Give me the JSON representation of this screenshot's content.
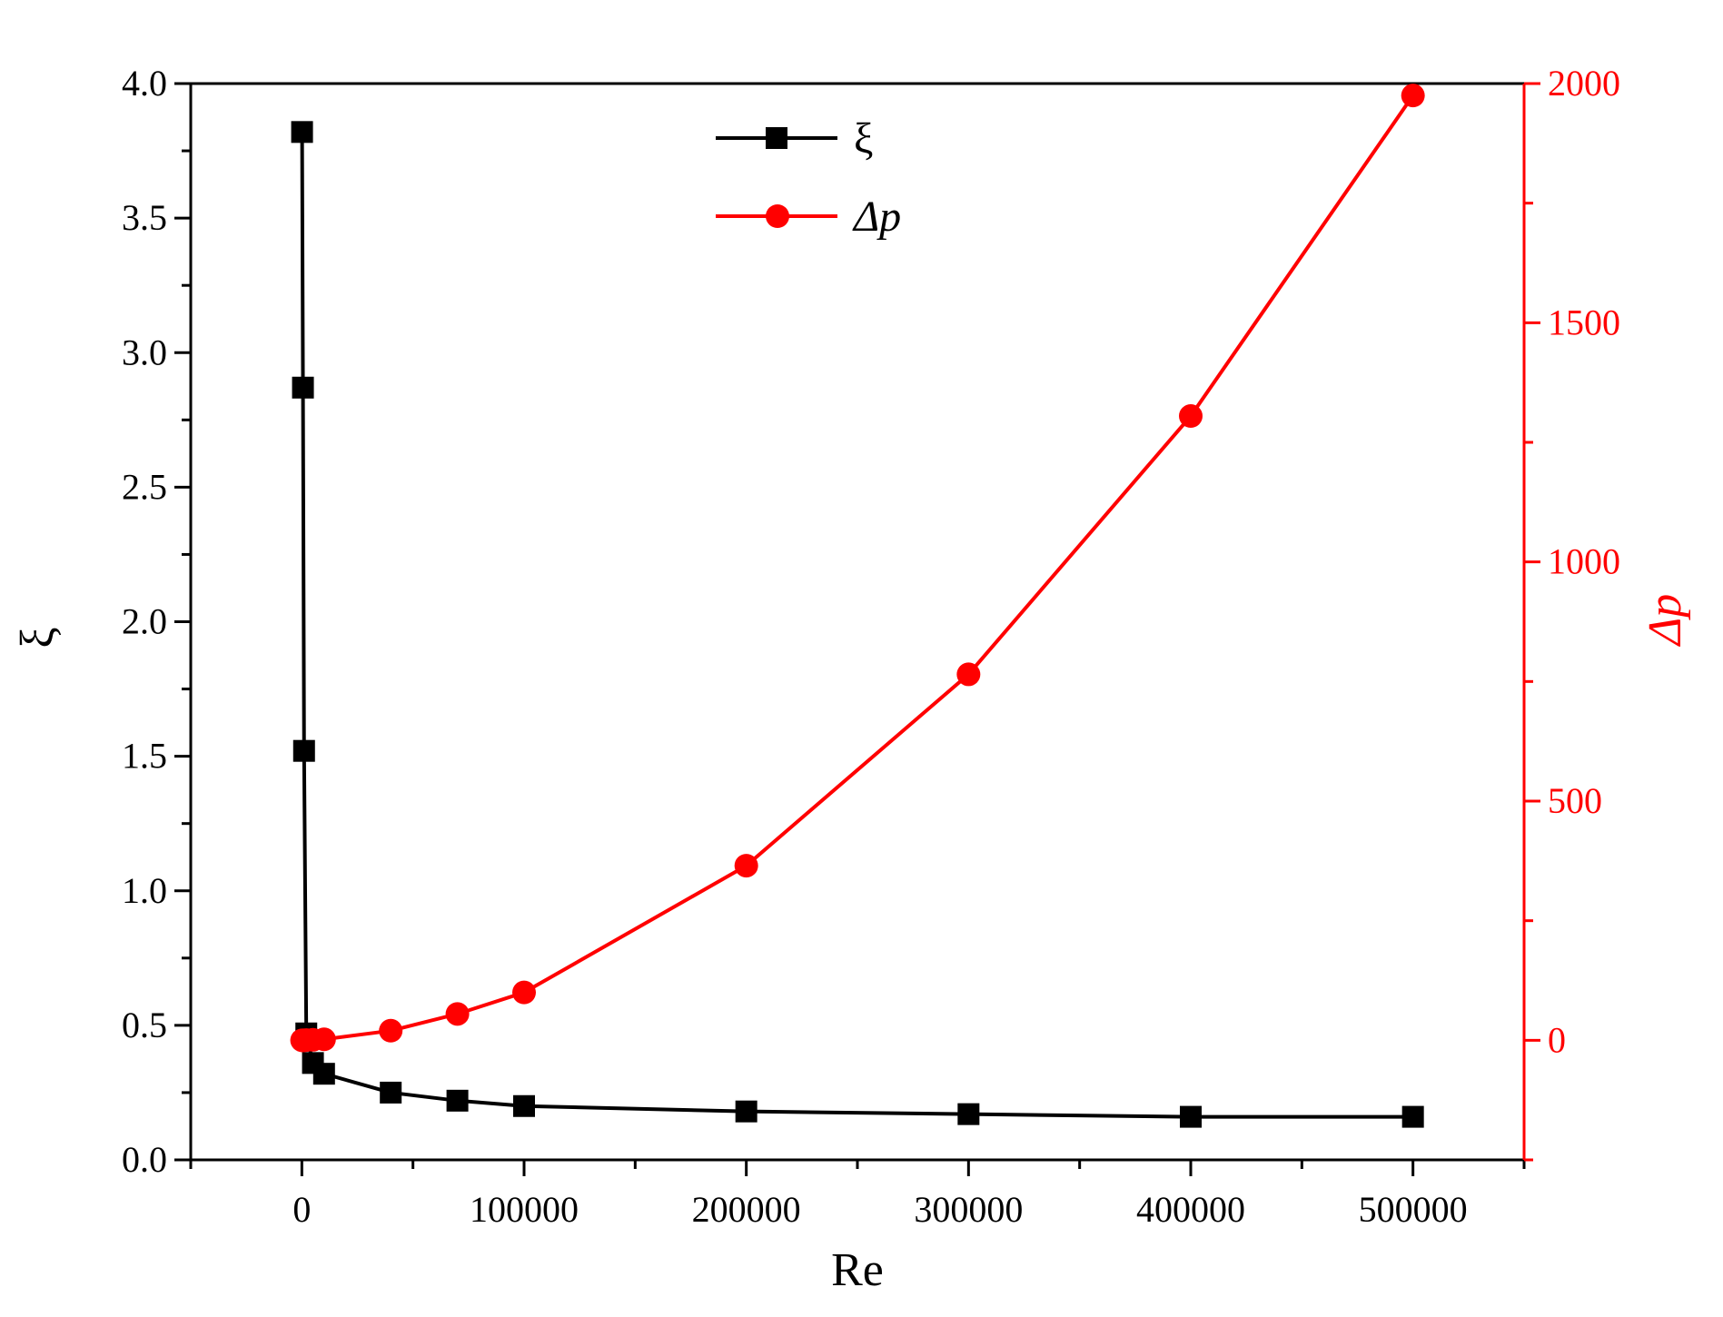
{
  "chart_data": {
    "type": "line",
    "xlabel": "Re",
    "ylabel_left": "ξ",
    "ylabel_right": "Δp",
    "xlim": [
      -50000,
      550000
    ],
    "ylim_left": [
      0,
      4.0
    ],
    "ylim_right": [
      -250,
      2000
    ],
    "x_ticks": [
      0,
      100000,
      200000,
      300000,
      400000,
      500000
    ],
    "x_tick_labels": [
      "0",
      "100000",
      "200000",
      "300000",
      "400000",
      "500000"
    ],
    "y_left_ticks": [
      0.0,
      0.5,
      1.0,
      1.5,
      2.0,
      2.5,
      3.0,
      3.5,
      4.0
    ],
    "y_left_tick_labels": [
      "0.0",
      "0.5",
      "1.0",
      "1.5",
      "2.0",
      "2.5",
      "3.0",
      "3.5",
      "4.0"
    ],
    "y_right_ticks": [
      0,
      500,
      1000,
      1500,
      2000
    ],
    "y_right_tick_labels": [
      "0",
      "500",
      "1000",
      "1500",
      "2000"
    ],
    "legend_position": "top-center",
    "grid": false,
    "series": [
      {
        "name": "ξ",
        "axis": "left",
        "color": "#000000",
        "marker": "square",
        "x": [
          100,
          500,
          1000,
          2000,
          5000,
          10000,
          40000,
          70000,
          100000,
          200000,
          300000,
          400000,
          500000
        ],
        "y": [
          3.82,
          2.87,
          1.52,
          0.47,
          0.36,
          0.32,
          0.25,
          0.22,
          0.2,
          0.18,
          0.17,
          0.16,
          0.16
        ]
      },
      {
        "name": "Δp",
        "axis": "right",
        "color": "#ff0000",
        "marker": "circle",
        "x": [
          100,
          500,
          1000,
          2000,
          5000,
          10000,
          40000,
          70000,
          100000,
          200000,
          300000,
          400000,
          500000
        ],
        "y": [
          0,
          0,
          0,
          0.5,
          1,
          2,
          20,
          55,
          100,
          365,
          765,
          1305,
          1975
        ]
      }
    ]
  }
}
